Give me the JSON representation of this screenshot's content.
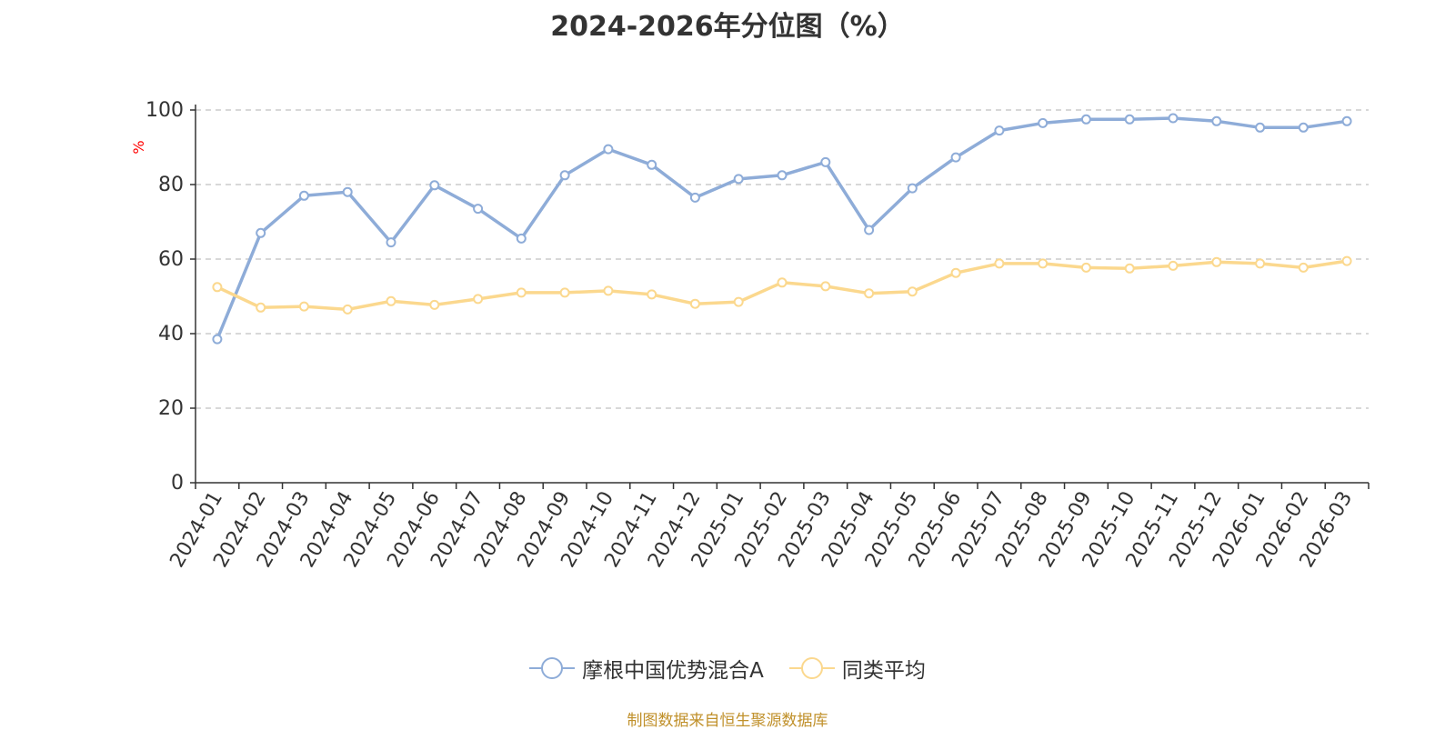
{
  "chart_data": {
    "type": "line",
    "title": "2024-2026年分位图（%）",
    "ylabel": "%",
    "xlabel": "",
    "ylim": [
      0,
      100
    ],
    "yticks": [
      0,
      20,
      40,
      60,
      80,
      100
    ],
    "grid": true,
    "legend_position": "bottom",
    "categories": [
      "2024-01",
      "2024-02",
      "2024-03",
      "2024-04",
      "2024-05",
      "2024-06",
      "2024-07",
      "2024-08",
      "2024-09",
      "2024-10",
      "2024-11",
      "2024-12",
      "2025-01",
      "2025-02",
      "2025-03",
      "2025-04",
      "2025-05",
      "2025-06",
      "2025-07",
      "2025-08",
      "2025-09",
      "2025-10",
      "2025-11",
      "2025-12",
      "2026-01",
      "2026-02",
      "2026-03"
    ],
    "series": [
      {
        "name": "摩根中国优势混合A",
        "color": "#8eacd8",
        "values": [
          38.5,
          67.0,
          77.0,
          78.0,
          64.5,
          79.8,
          73.5,
          65.5,
          82.5,
          89.5,
          85.3,
          76.5,
          81.5,
          82.5,
          86.0,
          67.8,
          79.0,
          87.3,
          94.5,
          96.5,
          97.5,
          97.5,
          97.8,
          97.0,
          95.3,
          95.3,
          97.0
        ]
      },
      {
        "name": "同类平均",
        "color": "#fbd88e",
        "values": [
          52.5,
          47.0,
          47.3,
          46.5,
          48.7,
          47.7,
          49.3,
          51.0,
          51.0,
          51.5,
          50.5,
          48.0,
          48.5,
          53.7,
          52.7,
          50.8,
          51.3,
          56.3,
          58.8,
          58.8,
          57.7,
          57.5,
          58.2,
          59.2,
          58.8,
          57.7,
          59.5
        ]
      }
    ]
  },
  "footer": {
    "source": "制图数据来自恒生聚源数据库"
  }
}
